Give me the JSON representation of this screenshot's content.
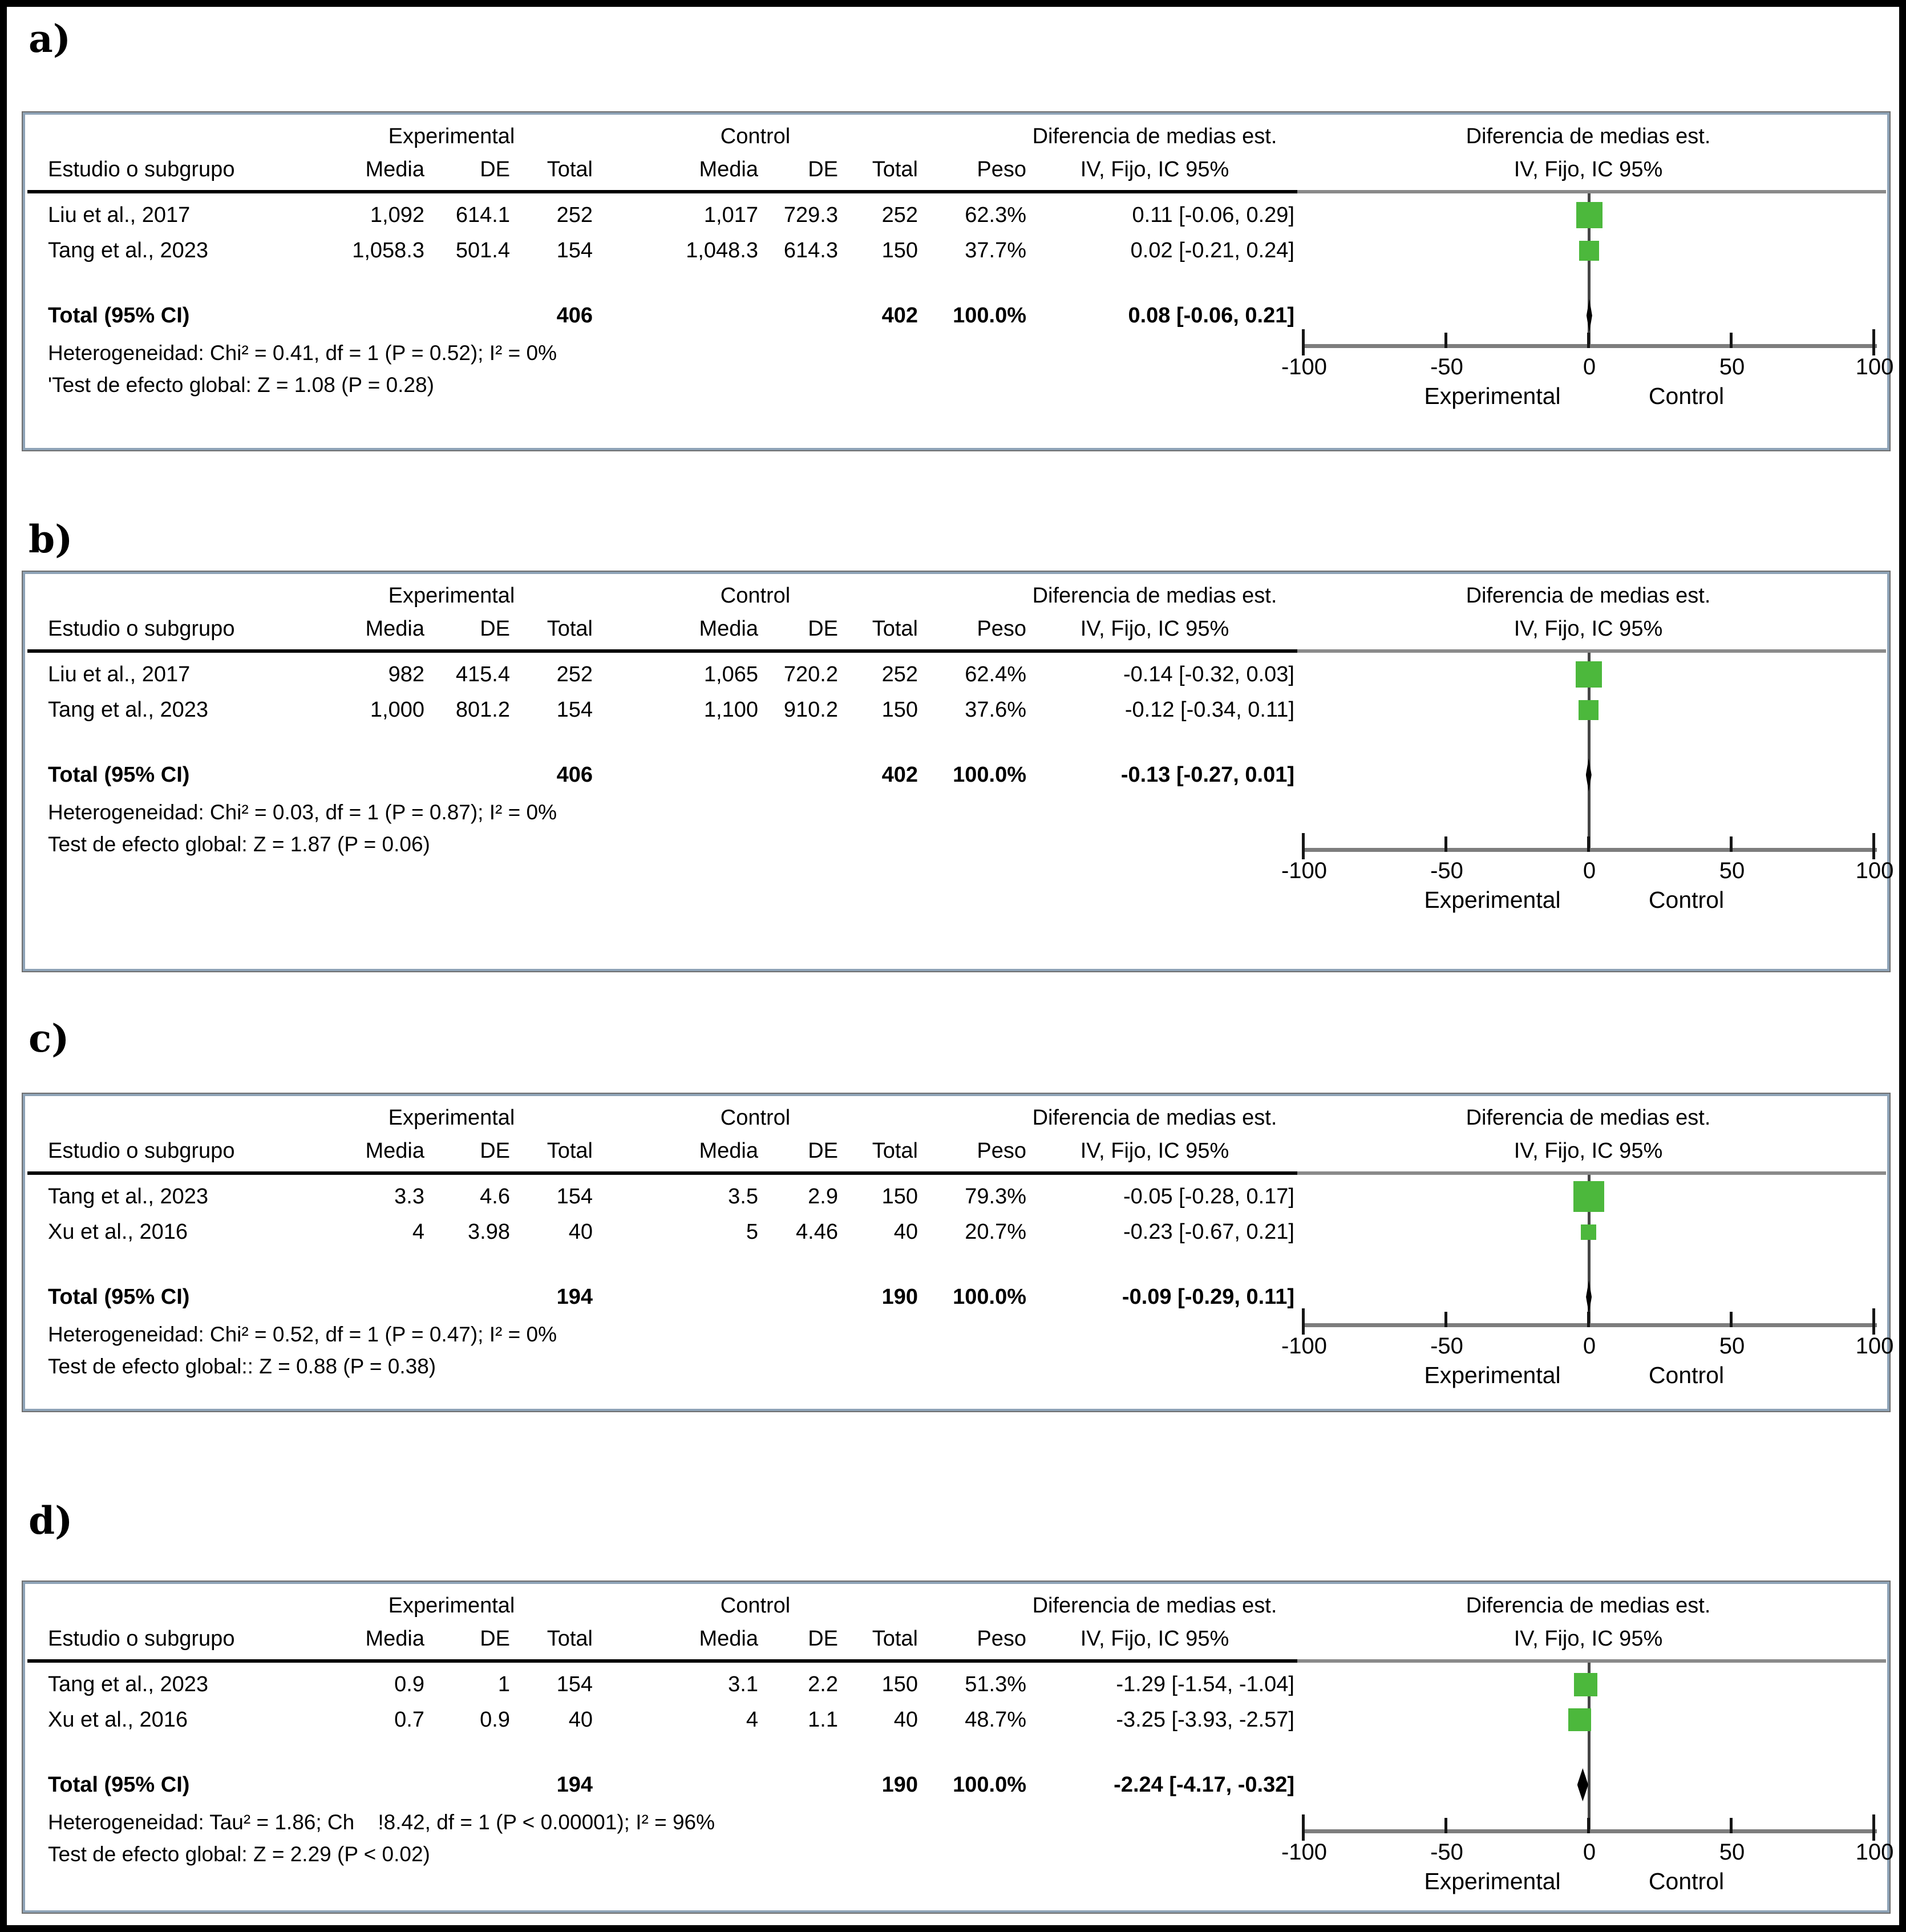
{
  "shared": {
    "group1": "Experimental",
    "group2": "Control",
    "study_col": "Estudio o subgrupo",
    "sub_cols": [
      "Media",
      "DE",
      "Total",
      "Media",
      "DE",
      "Total",
      "Peso"
    ],
    "effect_header": "Diferencia de medias est.",
    "method_header": "IV, Fijo, IC 95%",
    "axis": {
      "min": -100,
      "max": 100,
      "ticks": [
        -100,
        -50,
        0,
        50,
        100
      ],
      "tick_labels": [
        "-100",
        "-50",
        "0",
        "50",
        "100"
      ],
      "left_label": "Experimental",
      "right_label": "Control"
    },
    "marker_color": "#4cb83c",
    "diamond_color": "#000000"
  },
  "panels": [
    {
      "label": "a)",
      "rows": [
        {
          "study": "Liu et al., 2017",
          "media_e": "1,092",
          "de_e": "614.1",
          "total_e": "252",
          "media_c": "1,017",
          "de_c": "729.3",
          "total_c": "252",
          "peso": "62.3%",
          "ci_text": "0.11 [-0.06, 0.29]",
          "effect": 0.11,
          "ci_lo": -0.06,
          "ci_hi": 0.29,
          "weight": 62.3
        },
        {
          "study": "Tang et al., 2023",
          "media_e": "1,058.3",
          "de_e": "501.4",
          "total_e": "154",
          "media_c": "1,048.3",
          "de_c": "614.3",
          "total_c": "150",
          "peso": "37.7%",
          "ci_text": "0.02 [-0.21, 0.24]",
          "effect": 0.02,
          "ci_lo": -0.21,
          "ci_hi": 0.24,
          "weight": 37.7
        }
      ],
      "total": {
        "label": "Total (95% CI)",
        "total_e": "406",
        "total_c": "402",
        "peso": "100.0%",
        "ci_text": "0.08 [-0.06, 0.21]",
        "effect": 0.08,
        "ci_lo": -0.06,
        "ci_hi": 0.21
      },
      "heterogeneity": "Heterogeneidad: Chi² = 0.41, df = 1 (P = 0.52); I² = 0%",
      "overall": "'Test de efecto global: Z = 1.08 (P = 0.28)"
    },
    {
      "label": "b)",
      "rows": [
        {
          "study": "Liu et al., 2017",
          "media_e": "982",
          "de_e": "415.4",
          "total_e": "252",
          "media_c": "1,065",
          "de_c": "720.2",
          "total_c": "252",
          "peso": "62.4%",
          "ci_text": "-0.14 [-0.32, 0.03]",
          "effect": -0.14,
          "ci_lo": -0.32,
          "ci_hi": 0.03,
          "weight": 62.4
        },
        {
          "study": "Tang et al., 2023",
          "media_e": "1,000",
          "de_e": "801.2",
          "total_e": "154",
          "media_c": "1,100",
          "de_c": "910.2",
          "total_c": "150",
          "peso": "37.6%",
          "ci_text": "-0.12 [-0.34, 0.11]",
          "effect": -0.12,
          "ci_lo": -0.34,
          "ci_hi": 0.11,
          "weight": 37.6
        }
      ],
      "total": {
        "label": "Total (95% CI)",
        "total_e": "406",
        "total_c": "402",
        "peso": "100.0%",
        "ci_text": "-0.13 [-0.27, 0.01]",
        "effect": -0.13,
        "ci_lo": -0.27,
        "ci_hi": 0.01
      },
      "heterogeneity": "Heterogeneidad: Chi² = 0.03, df = 1 (P = 0.87); I² = 0%",
      "overall": "Test de efecto global: Z = 1.87 (P = 0.06)"
    },
    {
      "label": "c)",
      "rows": [
        {
          "study": "Tang et al., 2023",
          "media_e": "3.3",
          "de_e": "4.6",
          "total_e": "154",
          "media_c": "3.5",
          "de_c": "2.9",
          "total_c": "150",
          "peso": "79.3%",
          "ci_text": "-0.05 [-0.28, 0.17]",
          "effect": -0.05,
          "ci_lo": -0.28,
          "ci_hi": 0.17,
          "weight": 79.3
        },
        {
          "study": "Xu et al., 2016",
          "media_e": "4",
          "de_e": "3.98",
          "total_e": "40",
          "media_c": "5",
          "de_c": "4.46",
          "total_c": "40",
          "peso": "20.7%",
          "ci_text": "-0.23 [-0.67, 0.21]",
          "effect": -0.23,
          "ci_lo": -0.67,
          "ci_hi": 0.21,
          "weight": 20.7
        }
      ],
      "total": {
        "label": "Total (95% CI)",
        "total_e": "194",
        "total_c": "190",
        "peso": "100.0%",
        "ci_text": "-0.09 [-0.29, 0.11]",
        "effect": -0.09,
        "ci_lo": -0.29,
        "ci_hi": 0.11
      },
      "heterogeneity": "Heterogeneidad: Chi² = 0.52, df = 1 (P = 0.47); I² = 0%",
      "overall": "Test de efecto global:: Z = 0.88 (P = 0.38)"
    },
    {
      "label": "d)",
      "rows": [
        {
          "study": "Tang et al., 2023",
          "media_e": "0.9",
          "de_e": "1",
          "total_e": "154",
          "media_c": "3.1",
          "de_c": "2.2",
          "total_c": "150",
          "peso": "51.3%",
          "ci_text": "-1.29 [-1.54, -1.04]",
          "effect": -1.29,
          "ci_lo": -1.54,
          "ci_hi": -1.04,
          "weight": 51.3
        },
        {
          "study": "Xu et al., 2016",
          "media_e": "0.7",
          "de_e": "0.9",
          "total_e": "40",
          "media_c": "4",
          "de_c": "1.1",
          "total_c": "40",
          "peso": "48.7%",
          "ci_text": "-3.25 [-3.93, -2.57]",
          "effect": -3.25,
          "ci_lo": -3.93,
          "ci_hi": -2.57,
          "weight": 48.7
        }
      ],
      "total": {
        "label": "Total (95% CI)",
        "total_e": "194",
        "total_c": "190",
        "peso": "100.0%",
        "ci_text": "-2.24 [-4.17, -0.32]",
        "effect": -2.24,
        "ci_lo": -4.17,
        "ci_hi": -0.32
      },
      "heterogeneity": "Heterogeneidad: Tau² = 1.86; Ch    !8.42, df = 1 (P < 0.00001); I² = 96%",
      "overall": "Test de efecto global: Z = 2.29 (P < 0.02)"
    }
  ],
  "chart_data": [
    {
      "type": "scatter",
      "subtype": "forest_plot",
      "title": "a)",
      "x_axis": {
        "min": -100,
        "max": 100,
        "ticks": [
          -100,
          -50,
          0,
          50,
          100
        ],
        "left_label": "Experimental",
        "right_label": "Control"
      },
      "studies": [
        {
          "name": "Liu et al., 2017",
          "effect": 0.11,
          "ci": [
            -0.06,
            0.29
          ],
          "weight_pct": 62.3
        },
        {
          "name": "Tang et al., 2023",
          "effect": 0.02,
          "ci": [
            -0.21,
            0.24
          ],
          "weight_pct": 37.7
        }
      ],
      "total": {
        "effect": 0.08,
        "ci": [
          -0.06,
          0.21
        ]
      }
    },
    {
      "type": "scatter",
      "subtype": "forest_plot",
      "title": "b)",
      "x_axis": {
        "min": -100,
        "max": 100,
        "ticks": [
          -100,
          -50,
          0,
          50,
          100
        ],
        "left_label": "Experimental",
        "right_label": "Control"
      },
      "studies": [
        {
          "name": "Liu et al., 2017",
          "effect": -0.14,
          "ci": [
            -0.32,
            0.03
          ],
          "weight_pct": 62.4
        },
        {
          "name": "Tang et al., 2023",
          "effect": -0.12,
          "ci": [
            -0.34,
            0.11
          ],
          "weight_pct": 37.6
        }
      ],
      "total": {
        "effect": -0.13,
        "ci": [
          -0.27,
          0.01
        ]
      }
    },
    {
      "type": "scatter",
      "subtype": "forest_plot",
      "title": "c)",
      "x_axis": {
        "min": -100,
        "max": 100,
        "ticks": [
          -100,
          -50,
          0,
          50,
          100
        ],
        "left_label": "Experimental",
        "right_label": "Control"
      },
      "studies": [
        {
          "name": "Tang et al., 2023",
          "effect": -0.05,
          "ci": [
            -0.28,
            0.17
          ],
          "weight_pct": 79.3
        },
        {
          "name": "Xu et al., 2016",
          "effect": -0.23,
          "ci": [
            -0.67,
            0.21
          ],
          "weight_pct": 20.7
        }
      ],
      "total": {
        "effect": -0.09,
        "ci": [
          -0.29,
          0.11
        ]
      }
    },
    {
      "type": "scatter",
      "subtype": "forest_plot",
      "title": "d)",
      "x_axis": {
        "min": -100,
        "max": 100,
        "ticks": [
          -100,
          -50,
          0,
          50,
          100
        ],
        "left_label": "Experimental",
        "right_label": "Control"
      },
      "studies": [
        {
          "name": "Tang et al., 2023",
          "effect": -1.29,
          "ci": [
            -1.54,
            -1.04
          ],
          "weight_pct": 51.3
        },
        {
          "name": "Xu et al., 2016",
          "effect": -3.25,
          "ci": [
            -3.93,
            -2.57
          ],
          "weight_pct": 48.7
        }
      ],
      "total": {
        "effect": -2.24,
        "ci": [
          -4.17,
          -0.32
        ]
      }
    }
  ]
}
